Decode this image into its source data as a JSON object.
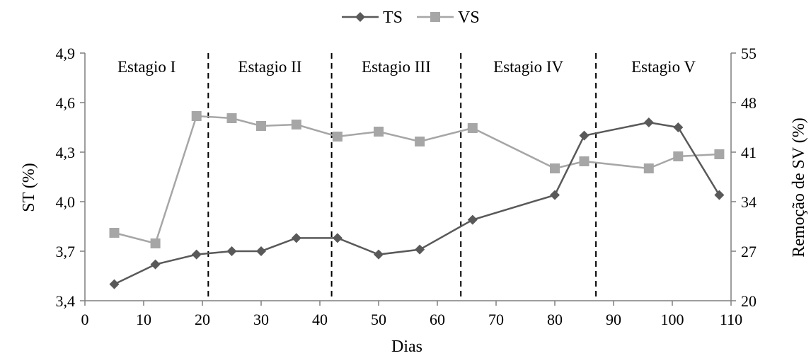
{
  "chart_data": {
    "type": "line",
    "xlabel": "Dias",
    "ylabel": "ST (%)",
    "y2label": "Remoção de SV (%)",
    "xlim": [
      0,
      110
    ],
    "ylim": [
      3.4,
      4.9
    ],
    "y2lim": [
      20,
      55
    ],
    "x_ticks": [
      "0",
      "10",
      "20",
      "30",
      "40",
      "50",
      "60",
      "70",
      "80",
      "90",
      "100",
      "110"
    ],
    "y_ticks": [
      "3,4",
      "3,7",
      "4,0",
      "4,3",
      "4,6",
      "4,9"
    ],
    "y2_ticks": [
      "20",
      "27",
      "34",
      "41",
      "48",
      "55"
    ],
    "grid": false,
    "legend_position": "top-center",
    "stage_dividers": [
      21,
      42,
      64,
      87
    ],
    "stages": [
      {
        "label": "Estagio I",
        "x": 10.5
      },
      {
        "label": "Estagio II",
        "x": 31.5
      },
      {
        "label": "Estagio III",
        "x": 53
      },
      {
        "label": "Estagio IV",
        "x": 75.5
      },
      {
        "label": "Estagio V",
        "x": 98.5
      }
    ],
    "series": [
      {
        "name": "TS",
        "axis": "left",
        "color": "#595959",
        "marker": "diamond",
        "x": [
          5,
          12,
          19,
          25,
          30,
          36,
          43,
          50,
          57,
          66,
          80,
          85,
          96,
          101,
          108
        ],
        "values": [
          3.5,
          3.62,
          3.68,
          3.7,
          3.7,
          3.78,
          3.78,
          3.68,
          3.71,
          3.89,
          4.04,
          4.4,
          4.48,
          4.45,
          4.04
        ]
      },
      {
        "name": "VS",
        "axis": "right",
        "color": "#a6a6a6",
        "marker": "square",
        "x": [
          5,
          12,
          19,
          25,
          30,
          36,
          43,
          50,
          57,
          66,
          80,
          85,
          96,
          101,
          108
        ],
        "values": [
          29.6,
          28.1,
          46.1,
          45.8,
          44.7,
          44.9,
          43.2,
          43.9,
          42.5,
          44.4,
          38.7,
          39.7,
          38.7,
          40.4,
          40.7
        ]
      }
    ]
  }
}
